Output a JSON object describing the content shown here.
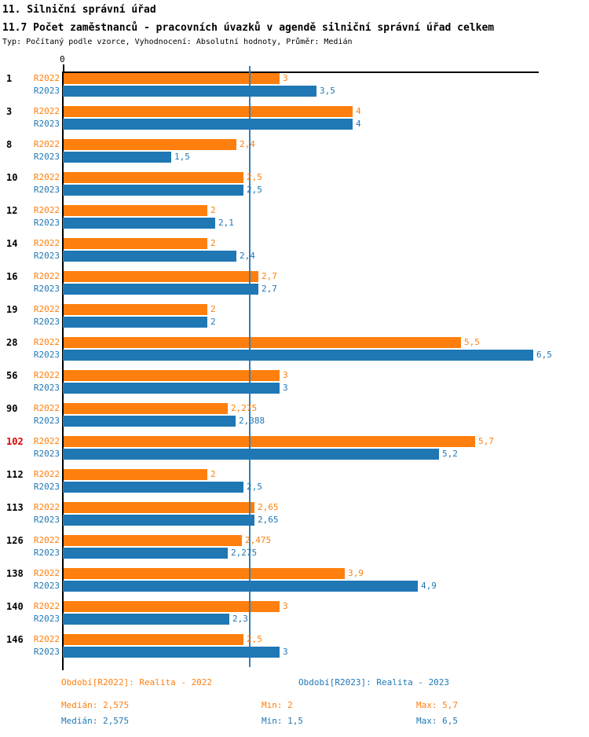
{
  "header": {
    "title": "11. Silniční správní úřad",
    "subtitle": "11.7 Počet zaměstnanců - pracovních úvazků v agendě silniční správní úřad celkem",
    "meta": "Typ: Počítaný podle vzorce, Vyhodnocení: Absolutní hodnoty, Průměr: Medián"
  },
  "colors": {
    "r2022": "#ff7f0e",
    "r2023": "#1f77b4",
    "highlight_category": "#dd0000",
    "median_line": "#3380b5",
    "axis": "#000000"
  },
  "axis": {
    "zero_label": "0"
  },
  "chart_data": {
    "type": "bar",
    "orientation": "horizontal",
    "categories": [
      "1",
      "3",
      "8",
      "10",
      "12",
      "14",
      "16",
      "19",
      "28",
      "56",
      "90",
      "102",
      "112",
      "113",
      "126",
      "138",
      "140",
      "146"
    ],
    "highlighted_category": "102",
    "series": [
      {
        "name": "R2022",
        "color": "#ff7f0e",
        "values": [
          3,
          4,
          2.4,
          2.5,
          2,
          2,
          2.7,
          2,
          5.5,
          3,
          2.275,
          5.7,
          2,
          2.65,
          2.475,
          3.9,
          3,
          2.5
        ],
        "labels": [
          "3",
          "4",
          "2,4",
          "2,5",
          "2",
          "2",
          "2,7",
          "2",
          "5,5",
          "3",
          "2,275",
          "5,7",
          "2",
          "2,65",
          "2,475",
          "3,9",
          "3",
          "2,5"
        ]
      },
      {
        "name": "R2023",
        "color": "#1f77b4",
        "values": [
          3.5,
          4,
          1.5,
          2.5,
          2.1,
          2.4,
          2.7,
          2,
          6.5,
          3,
          2.388,
          5.2,
          2.5,
          2.65,
          2.275,
          4.9,
          2.3,
          3
        ],
        "labels": [
          "3,5",
          "4",
          "1,5",
          "2,5",
          "2,1",
          "2,4",
          "2,7",
          "2",
          "6,5",
          "3",
          "2,388",
          "5,2",
          "2,5",
          "2,65",
          "2,275",
          "4,9",
          "2,3",
          "3"
        ]
      }
    ],
    "median_line_value": 2.575,
    "xlim": [
      0,
      6.58
    ],
    "grid": false,
    "legend_position": "bottom"
  },
  "footer": {
    "legend_r2022": "Období[R2022]: Realita - 2022",
    "legend_r2023": "Období[R2023]: Realita - 2023",
    "stats_r2022": {
      "median": "Medián: 2,575",
      "min": "Min: 2",
      "max": "Max: 5,7"
    },
    "stats_r2023": {
      "median": "Medián: 2,575",
      "min": "Min: 1,5",
      "max": "Max: 6,5"
    }
  }
}
